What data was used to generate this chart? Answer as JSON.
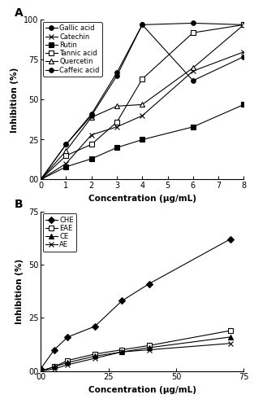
{
  "panel_A": {
    "title": "A",
    "xlabel": "Concentration (μg/mL)",
    "ylabel": "Inhibition (%)",
    "xlim": [
      0,
      8
    ],
    "ylim": [
      0,
      100
    ],
    "xticks": [
      0,
      1,
      2,
      3,
      4,
      5,
      6,
      7,
      8
    ],
    "yticks": [
      0,
      25,
      50,
      75,
      100
    ],
    "yticklabels": [
      "00",
      "25",
      "50",
      "75",
      "100"
    ],
    "series": [
      {
        "label": "Gallic acid",
        "x": [
          0,
          1,
          2,
          3,
          4,
          6,
          8
        ],
        "y": [
          0,
          22,
          41,
          67,
          97,
          98,
          97
        ],
        "marker": "o",
        "markersize": 4,
        "fillstyle": "full",
        "linestyle": "-"
      },
      {
        "label": "Catechin",
        "x": [
          0,
          1,
          2,
          3,
          4,
          6,
          8
        ],
        "y": [
          0,
          10,
          28,
          33,
          40,
          68,
          80
        ],
        "marker": "x",
        "markersize": 5,
        "fillstyle": "full",
        "linestyle": "-"
      },
      {
        "label": "Rutin",
        "x": [
          0,
          1,
          2,
          3,
          4,
          6,
          8
        ],
        "y": [
          0,
          8,
          13,
          20,
          25,
          33,
          47
        ],
        "marker": "s",
        "markersize": 4,
        "fillstyle": "full",
        "linestyle": "-"
      },
      {
        "label": "Tannic acid",
        "x": [
          0,
          1,
          2,
          3,
          4,
          6,
          8
        ],
        "y": [
          0,
          15,
          22,
          36,
          63,
          92,
          97
        ],
        "marker": "s",
        "markersize": 4,
        "fillstyle": "none",
        "linestyle": "-"
      },
      {
        "label": "Quercetin",
        "x": [
          0,
          1,
          2,
          3,
          4,
          6,
          8
        ],
        "y": [
          0,
          18,
          39,
          46,
          47,
          70,
          97
        ],
        "marker": "^",
        "markersize": 4,
        "fillstyle": "none",
        "linestyle": "-"
      },
      {
        "label": "Caffeic acid",
        "x": [
          0,
          1,
          2,
          3,
          4,
          6,
          8
        ],
        "y": [
          0,
          22,
          40,
          65,
          97,
          62,
          77
        ],
        "marker": "o",
        "markersize": 4,
        "fillstyle": "full",
        "linestyle": "-"
      }
    ]
  },
  "panel_B": {
    "title": "B",
    "xlabel": "Concentration (μg/mL)",
    "ylabel": "Inhibition (%)",
    "xlim": [
      0,
      75
    ],
    "ylim": [
      0,
      75
    ],
    "xticks": [
      0,
      25,
      50,
      75
    ],
    "xticklabels": [
      "00",
      "25",
      "50",
      "75"
    ],
    "yticks": [
      0,
      25,
      50,
      75
    ],
    "yticklabels": [
      "00",
      "25",
      "50",
      "75"
    ],
    "series": [
      {
        "label": "CHE",
        "x": [
          0,
          5,
          10,
          20,
          30,
          40,
          70
        ],
        "y": [
          1,
          10,
          16,
          21,
          33,
          41,
          62
        ],
        "marker": "D",
        "markersize": 4,
        "fillstyle": "full",
        "linestyle": "-"
      },
      {
        "label": "EAE",
        "x": [
          0,
          5,
          10,
          20,
          30,
          40,
          70
        ],
        "y": [
          0,
          2,
          5,
          8,
          10,
          12,
          19
        ],
        "marker": "s",
        "markersize": 4,
        "fillstyle": "none",
        "linestyle": "-"
      },
      {
        "label": "CE",
        "x": [
          0,
          5,
          10,
          20,
          30,
          40,
          70
        ],
        "y": [
          0,
          2,
          4,
          7,
          9,
          11,
          16
        ],
        "marker": "^",
        "markersize": 4,
        "fillstyle": "full",
        "linestyle": "-"
      },
      {
        "label": "AE",
        "x": [
          0,
          5,
          10,
          20,
          30,
          40,
          70
        ],
        "y": [
          0,
          1,
          3,
          6,
          9,
          10,
          13
        ],
        "marker": "x",
        "markersize": 5,
        "fillstyle": "full",
        "linestyle": "-"
      }
    ]
  },
  "background_color": "#ffffff",
  "font_size": 7,
  "legend_fontsize": 6,
  "label_fontsize": 7.5,
  "tick_fontsize": 7
}
